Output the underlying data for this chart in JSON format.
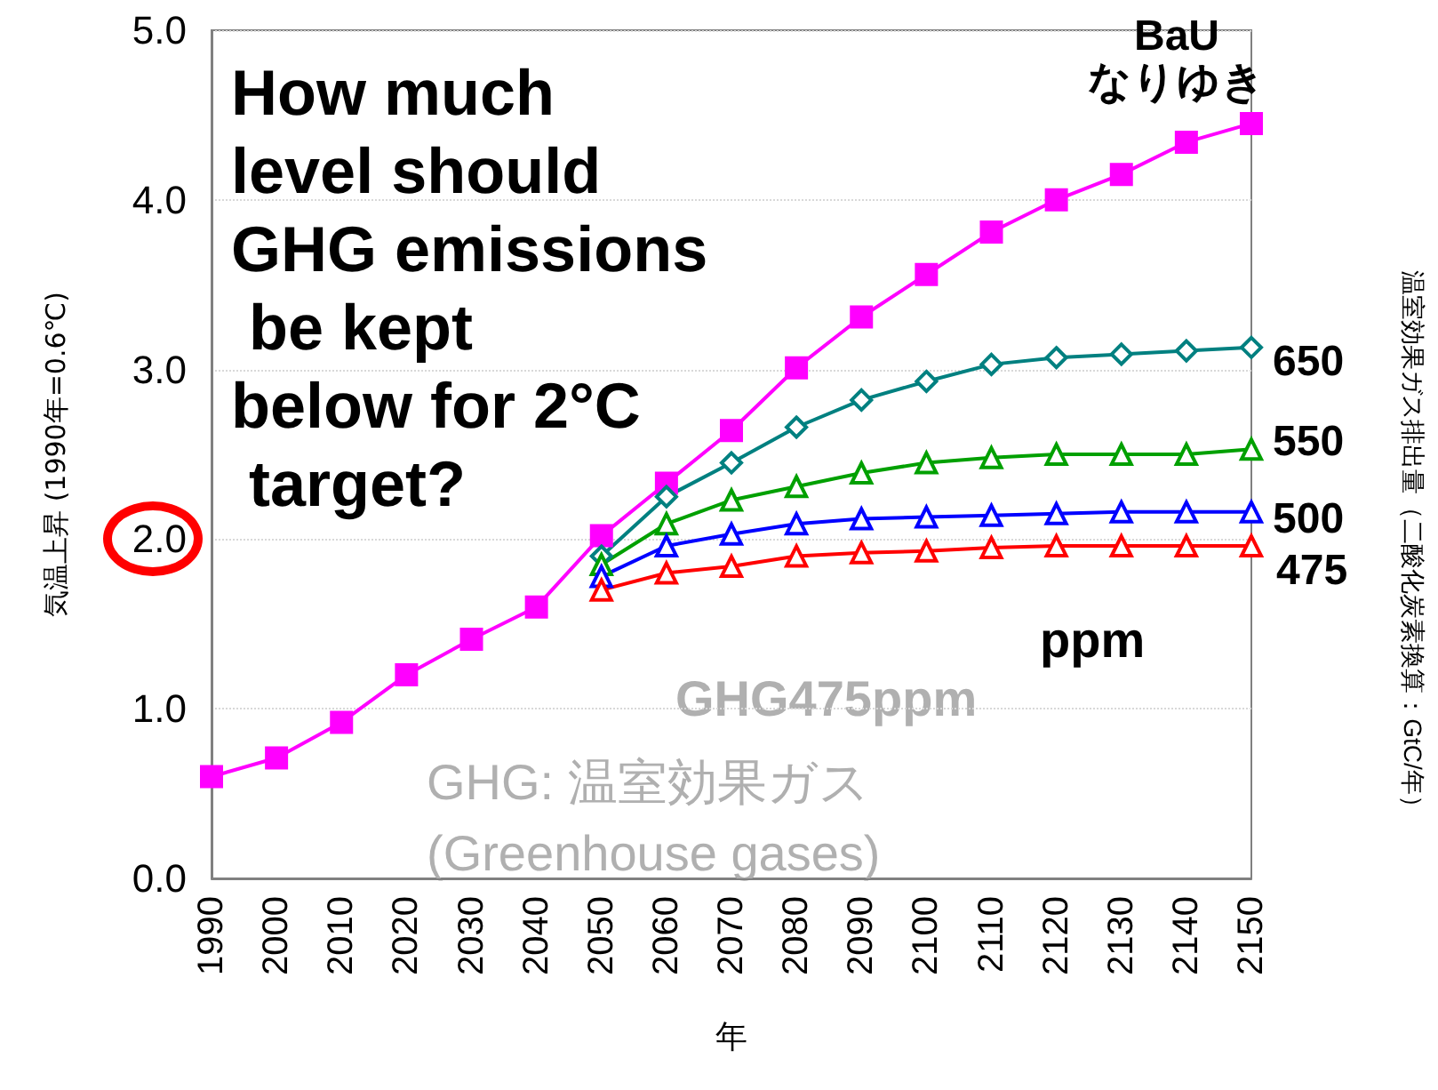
{
  "chart_data": {
    "type": "line",
    "ylabel": "気温上昇 (1990年=0.6℃)",
    "xlabel": "年",
    "categories": [
      "1990",
      "2000",
      "2010",
      "2020",
      "2030",
      "2040",
      "2050",
      "2060",
      "2070",
      "2080",
      "2090",
      "2100",
      "2110",
      "2120",
      "2130",
      "2140",
      "2150"
    ],
    "series": [
      {
        "name": "BaU\nなりゆき",
        "color": "#ff00ff",
        "marker": "square",
        "values": [
          0.6,
          0.71,
          0.92,
          1.2,
          1.41,
          1.6,
          2.02,
          2.33,
          2.64,
          3.01,
          3.31,
          3.56,
          3.81,
          4.0,
          4.15,
          4.34,
          4.45
        ]
      },
      {
        "name": "650",
        "color": "#008080",
        "marker": "diamond",
        "values": [
          null,
          null,
          null,
          null,
          null,
          null,
          1.9,
          2.25,
          2.45,
          2.66,
          2.82,
          2.93,
          3.03,
          3.07,
          3.09,
          3.11,
          3.13
        ]
      },
      {
        "name": "550",
        "color": "#00a000",
        "marker": "triangle",
        "values": [
          null,
          null,
          null,
          null,
          null,
          null,
          1.85,
          2.09,
          2.23,
          2.31,
          2.39,
          2.45,
          2.48,
          2.5,
          2.5,
          2.5,
          2.53
        ]
      },
      {
        "name": "500",
        "color": "#0000ff",
        "marker": "triangle",
        "values": [
          null,
          null,
          null,
          null,
          null,
          null,
          1.78,
          1.96,
          2.03,
          2.09,
          2.12,
          2.13,
          2.14,
          2.15,
          2.16,
          2.16,
          2.16
        ]
      },
      {
        "name": "475",
        "color": "#ff0000",
        "marker": "triangle",
        "values": [
          null,
          null,
          null,
          null,
          null,
          null,
          1.7,
          1.8,
          1.84,
          1.9,
          1.92,
          1.93,
          1.95,
          1.96,
          1.96,
          1.96,
          1.96
        ]
      }
    ],
    "ylim": [
      0,
      5
    ],
    "yticks": [
      {
        "value": 0,
        "label": "0.0"
      },
      {
        "value": 1,
        "label": "1.0"
      },
      {
        "value": 2,
        "label": "2.0"
      },
      {
        "value": 3,
        "label": "3.0"
      },
      {
        "value": 4,
        "label": "4.0"
      },
      {
        "value": 5,
        "label": "5.0"
      }
    ],
    "grid": "y",
    "legend": false,
    "line_style": "solid",
    "annotations": [
      "How much level should GHG emissions be kept below for 2°C target?",
      "GHG475ppm",
      "ppm",
      "GHG: 温室効果ガス (Greenhouse gases)",
      "温室効果ガス排出量（二酸化炭素換算：GtC/年）"
    ]
  }
}
